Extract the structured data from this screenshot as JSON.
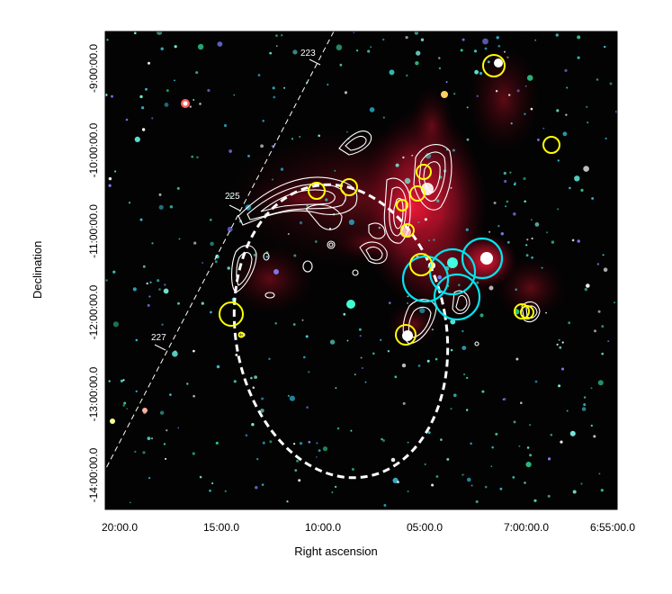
{
  "axes": {
    "xlabel": "Right ascension",
    "ylabel": "Declination",
    "xticks": [
      "20:00.0",
      "15:00.0",
      "10:00.0",
      "05:00.0",
      "7:00:00.0",
      "6:55:00.0"
    ],
    "yticks": [
      "-9:00:00.0",
      "-10:00:00.0",
      "-11:00:00.0",
      "-12:00:00.0",
      "-13:00:00.0",
      "-14:00:00.0"
    ]
  },
  "galactic_longitude_labels": [
    "223",
    "225",
    "227"
  ],
  "colors": {
    "yellow_markers": "#ffff00",
    "cyan_markers": "#00e5ee",
    "contours": "#ffffff",
    "background": "#000000",
    "nebula": "#c0102a"
  }
}
